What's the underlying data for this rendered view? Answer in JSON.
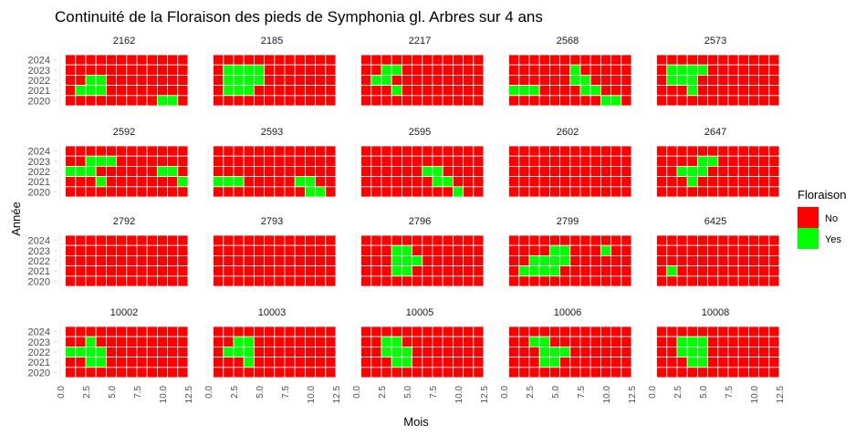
{
  "chart_data": {
    "type": "heatmap",
    "title": "Continuité de la Floraison des pieds de Symphonia gl. Arbres sur 4 ans",
    "xlabel": "Mois",
    "ylabel": "Année",
    "years": [
      "2024",
      "2023",
      "2022",
      "2021",
      "2020"
    ],
    "x_ticks": [
      "0.0",
      "2.5",
      "5.0",
      "7.5",
      "10.0",
      "12.5"
    ],
    "xlim": [
      0,
      12.5
    ],
    "months": [
      1,
      2,
      3,
      4,
      5,
      6,
      7,
      8,
      9,
      10,
      11,
      12
    ],
    "legend": {
      "title": "Floraison",
      "position": "right",
      "entries": [
        {
          "label": "No",
          "color": "#ff0000"
        },
        {
          "label": "Yes",
          "color": "#00ff00"
        }
      ]
    },
    "colors": {
      "no": "#ff0000",
      "yes": "#00ff00"
    },
    "facets": [
      {
        "label": "2162",
        "yes": {
          "2022": [
            3,
            4
          ],
          "2021": [
            2,
            3,
            4
          ],
          "2020": [
            10,
            11
          ]
        }
      },
      {
        "label": "2185",
        "yes": {
          "2023": [
            2,
            3,
            4,
            5
          ],
          "2022": [
            2,
            3,
            4,
            5
          ],
          "2021": [
            2,
            3,
            4
          ]
        }
      },
      {
        "label": "2217",
        "yes": {
          "2023": [
            3,
            4
          ],
          "2022": [
            2,
            3
          ],
          "2021": [
            4
          ]
        }
      },
      {
        "label": "2568",
        "yes": {
          "2023": [
            7
          ],
          "2022": [
            7,
            8
          ],
          "2021": [
            1,
            2,
            3,
            8,
            9
          ],
          "2020": [
            10,
            11
          ]
        }
      },
      {
        "label": "2573",
        "yes": {
          "2023": [
            2,
            3,
            4,
            5
          ],
          "2022": [
            2,
            3,
            4
          ],
          "2021": [
            4
          ]
        }
      },
      {
        "label": "2592",
        "yes": {
          "2023": [
            3,
            4,
            5
          ],
          "2022": [
            1,
            2,
            3,
            10,
            11
          ],
          "2021": [
            4,
            12
          ]
        }
      },
      {
        "label": "2593",
        "yes": {
          "2021": [
            1,
            2,
            3,
            9,
            10
          ],
          "2020": [
            10,
            11
          ]
        }
      },
      {
        "label": "2595",
        "yes": {
          "2022": [
            7,
            8
          ],
          "2021": [
            8,
            9
          ],
          "2020": [
            10
          ]
        }
      },
      {
        "label": "2602",
        "yes": {}
      },
      {
        "label": "2647",
        "yes": {
          "2023": [
            5,
            6
          ],
          "2022": [
            3,
            4,
            5
          ],
          "2021": [
            4
          ]
        }
      },
      {
        "label": "2792",
        "yes": {}
      },
      {
        "label": "2793",
        "yes": {}
      },
      {
        "label": "2796",
        "yes": {
          "2023": [
            4,
            5
          ],
          "2022": [
            4,
            5,
            6
          ],
          "2021": [
            4,
            5
          ]
        }
      },
      {
        "label": "2799",
        "yes": {
          "2023": [
            5,
            6,
            10
          ],
          "2022": [
            3,
            4,
            5,
            6
          ],
          "2021": [
            2,
            3,
            4,
            5
          ]
        }
      },
      {
        "label": "6425",
        "yes": {
          "2021": [
            2
          ]
        }
      },
      {
        "label": "10002",
        "yes": {
          "2023": [
            3
          ],
          "2022": [
            1,
            2,
            3,
            4
          ],
          "2021": [
            3,
            4
          ]
        }
      },
      {
        "label": "10003",
        "yes": {
          "2023": [
            3,
            4
          ],
          "2022": [
            2,
            3,
            4
          ],
          "2021": [
            4
          ]
        }
      },
      {
        "label": "10005",
        "yes": {
          "2023": [
            3,
            4
          ],
          "2022": [
            3,
            4,
            5
          ],
          "2021": [
            4,
            5
          ]
        }
      },
      {
        "label": "10006",
        "yes": {
          "2023": [
            3,
            4
          ],
          "2022": [
            4,
            5,
            6
          ],
          "2021": [
            4,
            5
          ]
        }
      },
      {
        "label": "10008",
        "yes": {
          "2023": [
            3,
            4,
            5
          ],
          "2022": [
            3,
            4,
            5
          ],
          "2021": [
            4,
            5
          ]
        }
      }
    ]
  }
}
